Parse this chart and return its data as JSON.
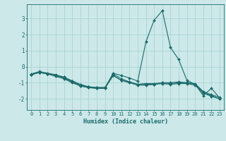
{
  "xlabel": "Humidex (Indice chaleur)",
  "ylabel": "",
  "bg_color": "#cce8e8",
  "grid_color": "#aad4d4",
  "line_color": "#1a6b6b",
  "xlim": [
    -0.5,
    23.5
  ],
  "ylim": [
    -2.7,
    3.9
  ],
  "yticks": [
    -2,
    -1,
    0,
    1,
    2,
    3
  ],
  "xticks": [
    0,
    1,
    2,
    3,
    4,
    5,
    6,
    7,
    8,
    9,
    10,
    11,
    12,
    13,
    14,
    15,
    16,
    17,
    18,
    19,
    20,
    21,
    22,
    23
  ],
  "series": [
    {
      "x": [
        0,
        1,
        2,
        3,
        4,
        5,
        6,
        7,
        8,
        9,
        10,
        11,
        12,
        13,
        14,
        15,
        16,
        17,
        18,
        19,
        20,
        21,
        22,
        23
      ],
      "y": [
        -0.5,
        -0.35,
        -0.45,
        -0.55,
        -0.65,
        -0.9,
        -1.2,
        -1.3,
        -1.35,
        -1.35,
        -0.4,
        -0.55,
        -0.7,
        -0.9,
        1.55,
        2.9,
        3.5,
        1.2,
        0.45,
        -0.85,
        -1.1,
        -1.8,
        -1.35,
        -1.95
      ]
    },
    {
      "x": [
        0,
        1,
        2,
        3,
        4,
        5,
        6,
        7,
        8,
        9,
        10,
        11,
        12,
        13,
        14,
        15,
        16,
        17,
        18,
        19,
        20,
        21,
        22,
        23
      ],
      "y": [
        -0.5,
        -0.35,
        -0.45,
        -0.55,
        -0.7,
        -0.95,
        -1.15,
        -1.25,
        -1.3,
        -1.3,
        -0.55,
        -0.85,
        -0.95,
        -1.1,
        -1.1,
        -1.1,
        -1.0,
        -1.05,
        -1.0,
        -1.0,
        -1.1,
        -1.6,
        -1.8,
        -2.0
      ]
    },
    {
      "x": [
        0,
        1,
        2,
        3,
        4,
        5,
        6,
        7,
        8,
        9,
        10,
        11,
        12,
        13,
        14,
        15,
        16,
        17,
        18,
        19,
        20,
        21,
        22,
        23
      ],
      "y": [
        -0.5,
        -0.35,
        -0.45,
        -0.6,
        -0.75,
        -1.0,
        -1.2,
        -1.3,
        -1.35,
        -1.35,
        -0.55,
        -0.85,
        -1.0,
        -1.15,
        -1.15,
        -1.1,
        -1.05,
        -1.1,
        -1.05,
        -1.05,
        -1.15,
        -1.65,
        -1.85,
        -2.0
      ]
    },
    {
      "x": [
        0,
        1,
        2,
        3,
        4,
        5,
        6,
        7,
        8,
        9,
        10,
        11,
        12,
        13,
        14,
        15,
        16,
        17,
        18,
        19,
        20,
        21,
        22,
        23
      ],
      "y": [
        -0.45,
        -0.3,
        -0.4,
        -0.5,
        -0.65,
        -0.88,
        -1.1,
        -1.25,
        -1.3,
        -1.3,
        -0.45,
        -0.75,
        -0.95,
        -1.1,
        -1.05,
        -1.05,
        -1.0,
        -1.0,
        -0.95,
        -1.0,
        -1.05,
        -1.55,
        -1.75,
        -1.9
      ]
    }
  ]
}
